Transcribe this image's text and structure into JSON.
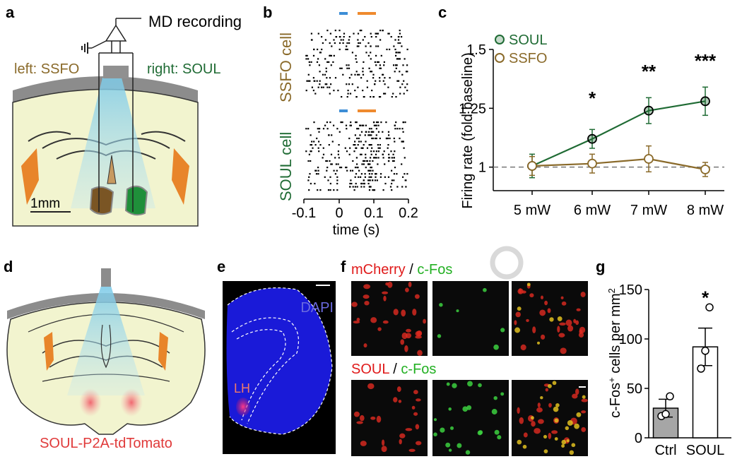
{
  "panels": {
    "a": {
      "letter": "a",
      "recording_label": "MD recording",
      "left_label": "left: SSFO",
      "right_label": "right: SOUL",
      "scale_label": "1mm"
    },
    "b": {
      "letter": "b",
      "top_label": "SSFO cell",
      "bottom_label": "SOUL cell",
      "xlabel": "time (s)",
      "xticks": [
        "-0.1",
        "0",
        "0.1",
        "0.2"
      ],
      "blue_color": "#3d8ed6",
      "orange_color": "#ef8a2e"
    },
    "c": {
      "letter": "c",
      "ylabel": "Firing rate (fold baseline)",
      "legend": [
        "SOUL",
        "SSFO"
      ],
      "stars": [
        "*",
        "**",
        "***"
      ],
      "soul_color": "#1f6b34",
      "ssfo_color": "#8a6a2a"
    },
    "d": {
      "letter": "d",
      "construct_label": "SOUL-P2A-tdTomato",
      "label_color": "#e03a3a"
    },
    "e": {
      "letter": "e",
      "stain_label": "DAPI",
      "region_label": "LH"
    },
    "f": {
      "letter": "f",
      "top_label_red": "mCherry",
      "top_sep": " / ",
      "top_label_green": "c-Fos",
      "bottom_label_red": "SOUL",
      "bottom_sep": " / ",
      "bottom_label_green": "c-Fos"
    },
    "g": {
      "letter": "g",
      "ylabel_prefix": "c-Fos",
      "ylabel_sup": "+",
      "ylabel_mid": " cells per mm",
      "ylabel_sup2": "2",
      "star": "*"
    }
  },
  "chart_data": [
    {
      "type": "line",
      "panel": "c",
      "categories": [
        "5 mW",
        "6 mW",
        "7 mW",
        "8 mW"
      ],
      "ylabel": "Firing rate (fold baseline)",
      "yticks": [
        "1",
        "1.25",
        "1.5"
      ],
      "ylim": [
        0.9,
        1.5
      ],
      "series": [
        {
          "name": "SOUL",
          "values": [
            1.005,
            1.12,
            1.24,
            1.28
          ],
          "errors": [
            0.05,
            0.04,
            0.055,
            0.06
          ]
        },
        {
          "name": "SSFO",
          "values": [
            1.005,
            1.015,
            1.035,
            0.99
          ],
          "errors": [
            0.04,
            0.04,
            0.055,
            0.03
          ]
        }
      ],
      "significance": [
        "",
        "*",
        "**",
        "***"
      ],
      "reference_line": 1
    },
    {
      "type": "bar",
      "panel": "g",
      "categories": [
        "Ctrl",
        "SOUL"
      ],
      "values": [
        30,
        92
      ],
      "errors": [
        9,
        19
      ],
      "points": [
        [
          22,
          24,
          42
        ],
        [
          70,
          88,
          132
        ]
      ],
      "yticks": [
        "0",
        "50",
        "100",
        "150"
      ],
      "ylim": [
        0,
        150
      ],
      "bar_colors": [
        "#a6a6a6",
        "#ffffff"
      ]
    }
  ]
}
